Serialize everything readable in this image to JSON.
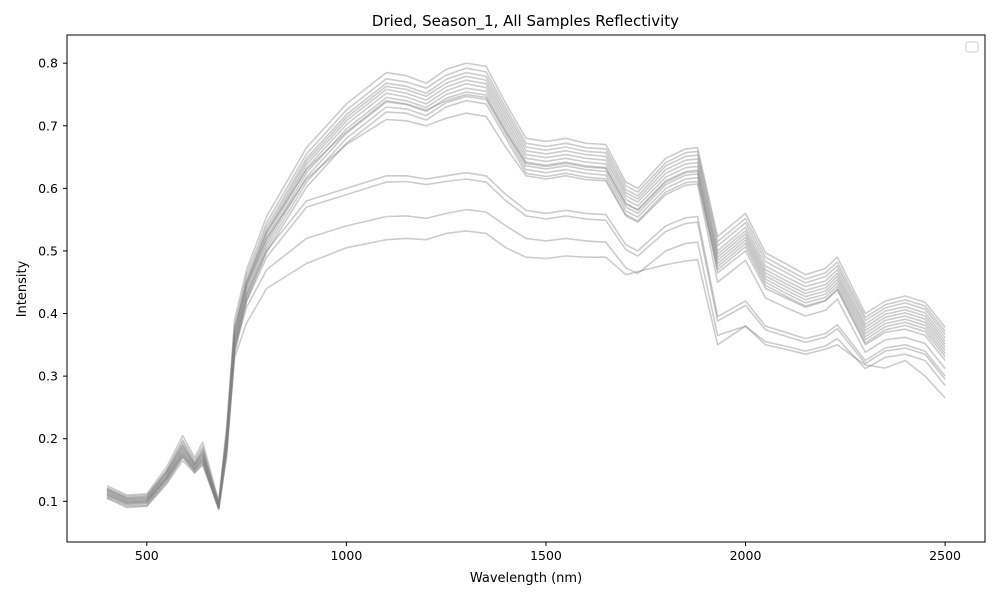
{
  "chart_data": {
    "type": "line",
    "title": "Dried, Season_1, All Samples Reflectivity",
    "xlabel": "Wavelength (nm)",
    "ylabel": "Intensity",
    "xlim": [
      300,
      2600
    ],
    "ylim": [
      0.035,
      0.845
    ],
    "xticks": [
      500,
      1000,
      1500,
      2000,
      2500
    ],
    "yticks": [
      0.1,
      0.2,
      0.3,
      0.4,
      0.5,
      0.6,
      0.7,
      0.8
    ],
    "xtick_labels": [
      "500",
      "1000",
      "1500",
      "2000",
      "2500"
    ],
    "ytick_labels": [
      "0.1",
      "0.2",
      "0.3",
      "0.4",
      "0.5",
      "0.6",
      "0.7",
      "0.8"
    ],
    "grid": false,
    "legend": "top-right (empty)",
    "line_color": "#808080",
    "line_alpha": 0.4,
    "x": [
      400,
      450,
      500,
      550,
      590,
      620,
      640,
      680,
      700,
      720,
      750,
      800,
      900,
      1000,
      1100,
      1150,
      1200,
      1250,
      1300,
      1350,
      1400,
      1450,
      1500,
      1550,
      1600,
      1650,
      1700,
      1730,
      1800,
      1850,
      1880,
      1930,
      2000,
      2050,
      2100,
      2150,
      2200,
      2230,
      2300,
      2350,
      2400,
      2450,
      2500
    ],
    "series": [
      {
        "values": [
          0.125,
          0.11,
          0.112,
          0.155,
          0.205,
          0.17,
          0.195,
          0.1,
          0.22,
          0.39,
          0.47,
          0.555,
          0.665,
          0.735,
          0.785,
          0.78,
          0.768,
          0.79,
          0.8,
          0.795,
          0.735,
          0.68,
          0.675,
          0.68,
          0.672,
          0.67,
          0.61,
          0.6,
          0.648,
          0.663,
          0.665,
          0.523,
          0.56,
          0.497,
          0.48,
          0.462,
          0.472,
          0.49,
          0.4,
          0.42,
          0.428,
          0.418,
          0.378
        ]
      },
      {
        "values": [
          0.122,
          0.108,
          0.11,
          0.15,
          0.198,
          0.166,
          0.188,
          0.098,
          0.212,
          0.38,
          0.462,
          0.545,
          0.655,
          0.725,
          0.775,
          0.77,
          0.76,
          0.781,
          0.792,
          0.786,
          0.728,
          0.672,
          0.667,
          0.672,
          0.665,
          0.663,
          0.604,
          0.594,
          0.641,
          0.657,
          0.659,
          0.515,
          0.552,
          0.49,
          0.472,
          0.455,
          0.465,
          0.482,
          0.394,
          0.414,
          0.422,
          0.412,
          0.372
        ]
      },
      {
        "values": [
          0.12,
          0.106,
          0.108,
          0.148,
          0.195,
          0.162,
          0.184,
          0.095,
          0.205,
          0.372,
          0.455,
          0.538,
          0.648,
          0.718,
          0.768,
          0.763,
          0.752,
          0.774,
          0.785,
          0.779,
          0.722,
          0.666,
          0.661,
          0.666,
          0.659,
          0.657,
          0.598,
          0.588,
          0.636,
          0.651,
          0.653,
          0.508,
          0.545,
          0.483,
          0.466,
          0.449,
          0.459,
          0.476,
          0.389,
          0.409,
          0.417,
          0.407,
          0.367
        ]
      },
      {
        "values": [
          0.118,
          0.104,
          0.105,
          0.145,
          0.19,
          0.16,
          0.18,
          0.094,
          0.2,
          0.366,
          0.45,
          0.532,
          0.643,
          0.713,
          0.763,
          0.758,
          0.747,
          0.768,
          0.779,
          0.773,
          0.716,
          0.66,
          0.655,
          0.66,
          0.654,
          0.651,
          0.593,
          0.583,
          0.63,
          0.645,
          0.647,
          0.5,
          0.538,
          0.476,
          0.459,
          0.443,
          0.452,
          0.47,
          0.383,
          0.404,
          0.411,
          0.401,
          0.361
        ]
      },
      {
        "values": [
          0.116,
          0.102,
          0.103,
          0.142,
          0.186,
          0.157,
          0.176,
          0.092,
          0.195,
          0.36,
          0.445,
          0.527,
          0.638,
          0.708,
          0.758,
          0.752,
          0.741,
          0.762,
          0.773,
          0.767,
          0.71,
          0.654,
          0.649,
          0.654,
          0.648,
          0.645,
          0.588,
          0.578,
          0.624,
          0.639,
          0.641,
          0.495,
          0.532,
          0.47,
          0.453,
          0.437,
          0.446,
          0.464,
          0.378,
          0.399,
          0.406,
          0.396,
          0.356
        ]
      },
      {
        "values": [
          0.114,
          0.1,
          0.101,
          0.14,
          0.182,
          0.155,
          0.172,
          0.091,
          0.19,
          0.355,
          0.44,
          0.521,
          0.632,
          0.702,
          0.752,
          0.746,
          0.735,
          0.756,
          0.767,
          0.761,
          0.704,
          0.648,
          0.643,
          0.648,
          0.642,
          0.639,
          0.582,
          0.572,
          0.618,
          0.633,
          0.635,
          0.49,
          0.527,
          0.465,
          0.448,
          0.432,
          0.441,
          0.459,
          0.373,
          0.394,
          0.401,
          0.391,
          0.351
        ]
      },
      {
        "values": [
          0.112,
          0.098,
          0.099,
          0.137,
          0.178,
          0.152,
          0.168,
          0.09,
          0.185,
          0.35,
          0.435,
          0.515,
          0.625,
          0.695,
          0.745,
          0.74,
          0.729,
          0.75,
          0.76,
          0.755,
          0.698,
          0.642,
          0.637,
          0.642,
          0.636,
          0.633,
          0.576,
          0.566,
          0.612,
          0.627,
          0.629,
          0.485,
          0.522,
          0.46,
          0.443,
          0.427,
          0.436,
          0.454,
          0.368,
          0.389,
          0.396,
          0.386,
          0.346
        ]
      },
      {
        "values": [
          0.11,
          0.096,
          0.097,
          0.135,
          0.175,
          0.15,
          0.165,
          0.089,
          0.18,
          0.345,
          0.43,
          0.51,
          0.618,
          0.688,
          0.738,
          0.734,
          0.723,
          0.744,
          0.754,
          0.749,
          0.692,
          0.636,
          0.631,
          0.636,
          0.63,
          0.627,
          0.57,
          0.56,
          0.606,
          0.621,
          0.623,
          0.48,
          0.517,
          0.455,
          0.438,
          0.422,
          0.431,
          0.449,
          0.363,
          0.384,
          0.391,
          0.381,
          0.341
        ]
      },
      {
        "values": [
          0.108,
          0.094,
          0.095,
          0.132,
          0.172,
          0.148,
          0.162,
          0.088,
          0.176,
          0.34,
          0.425,
          0.504,
          0.61,
          0.68,
          0.73,
          0.727,
          0.716,
          0.737,
          0.747,
          0.742,
          0.686,
          0.63,
          0.625,
          0.63,
          0.624,
          0.621,
          0.564,
          0.554,
          0.6,
          0.615,
          0.617,
          0.475,
          0.512,
          0.45,
          0.433,
          0.417,
          0.426,
          0.444,
          0.358,
          0.379,
          0.386,
          0.376,
          0.336
        ]
      },
      {
        "values": [
          0.106,
          0.092,
          0.093,
          0.13,
          0.17,
          0.146,
          0.16,
          0.087,
          0.172,
          0.335,
          0.42,
          0.498,
          0.602,
          0.672,
          0.722,
          0.72,
          0.709,
          0.73,
          0.74,
          0.735,
          0.68,
          0.624,
          0.619,
          0.624,
          0.618,
          0.615,
          0.558,
          0.548,
          0.594,
          0.609,
          0.611,
          0.47,
          0.507,
          0.445,
          0.428,
          0.412,
          0.421,
          0.439,
          0.353,
          0.374,
          0.381,
          0.371,
          0.331
        ]
      },
      {
        "values": [
          0.12,
          0.105,
          0.107,
          0.148,
          0.19,
          0.16,
          0.18,
          0.095,
          0.21,
          0.375,
          0.45,
          0.53,
          0.63,
          0.69,
          0.74,
          0.735,
          0.725,
          0.74,
          0.75,
          0.745,
          0.69,
          0.64,
          0.635,
          0.64,
          0.634,
          0.632,
          0.575,
          0.565,
          0.61,
          0.625,
          0.627,
          0.465,
          0.5,
          0.44,
          0.425,
          0.41,
          0.42,
          0.438,
          0.35,
          0.37,
          0.375,
          0.365,
          0.325
        ]
      },
      {
        "values": [
          0.118,
          0.103,
          0.105,
          0.145,
          0.185,
          0.158,
          0.176,
          0.094,
          0.205,
          0.37,
          0.445,
          0.52,
          0.615,
          0.67,
          0.71,
          0.708,
          0.7,
          0.712,
          0.72,
          0.715,
          0.665,
          0.62,
          0.615,
          0.62,
          0.614,
          0.612,
          0.556,
          0.546,
          0.59,
          0.605,
          0.607,
          0.45,
          0.485,
          0.425,
          0.41,
          0.396,
          0.405,
          0.423,
          0.338,
          0.358,
          0.362,
          0.352,
          0.312
        ]
      },
      {
        "values": [
          0.115,
          0.1,
          0.102,
          0.14,
          0.18,
          0.155,
          0.172,
          0.092,
          0.2,
          0.36,
          0.43,
          0.5,
          0.58,
          0.6,
          0.62,
          0.62,
          0.615,
          0.62,
          0.625,
          0.62,
          0.59,
          0.565,
          0.56,
          0.565,
          0.56,
          0.558,
          0.51,
          0.5,
          0.54,
          0.553,
          0.555,
          0.395,
          0.42,
          0.38,
          0.37,
          0.36,
          0.368,
          0.382,
          0.325,
          0.345,
          0.35,
          0.34,
          0.3
        ]
      },
      {
        "values": [
          0.112,
          0.098,
          0.1,
          0.138,
          0.176,
          0.152,
          0.168,
          0.091,
          0.196,
          0.352,
          0.42,
          0.49,
          0.57,
          0.59,
          0.61,
          0.611,
          0.606,
          0.611,
          0.615,
          0.61,
          0.58,
          0.556,
          0.551,
          0.556,
          0.551,
          0.549,
          0.502,
          0.492,
          0.531,
          0.544,
          0.546,
          0.388,
          0.413,
          0.374,
          0.364,
          0.354,
          0.362,
          0.376,
          0.32,
          0.34,
          0.345,
          0.335,
          0.295
        ]
      },
      {
        "values": [
          0.11,
          0.096,
          0.098,
          0.135,
          0.172,
          0.15,
          0.165,
          0.09,
          0.192,
          0.345,
          0.41,
          0.47,
          0.52,
          0.54,
          0.555,
          0.556,
          0.552,
          0.56,
          0.566,
          0.562,
          0.54,
          0.52,
          0.516,
          0.52,
          0.516,
          0.514,
          0.473,
          0.464,
          0.5,
          0.512,
          0.514,
          0.365,
          0.38,
          0.355,
          0.348,
          0.34,
          0.348,
          0.36,
          0.312,
          0.33,
          0.335,
          0.325,
          0.285
        ]
      },
      {
        "values": [
          0.105,
          0.09,
          0.092,
          0.128,
          0.165,
          0.145,
          0.158,
          0.088,
          0.185,
          0.33,
          0.385,
          0.44,
          0.48,
          0.505,
          0.518,
          0.52,
          0.518,
          0.528,
          0.532,
          0.528,
          0.505,
          0.49,
          0.488,
          0.492,
          0.49,
          0.49,
          0.462,
          0.467,
          0.478,
          0.484,
          0.486,
          0.35,
          0.38,
          0.35,
          0.343,
          0.335,
          0.343,
          0.35,
          0.318,
          0.313,
          0.325,
          0.3,
          0.265
        ]
      }
    ]
  }
}
